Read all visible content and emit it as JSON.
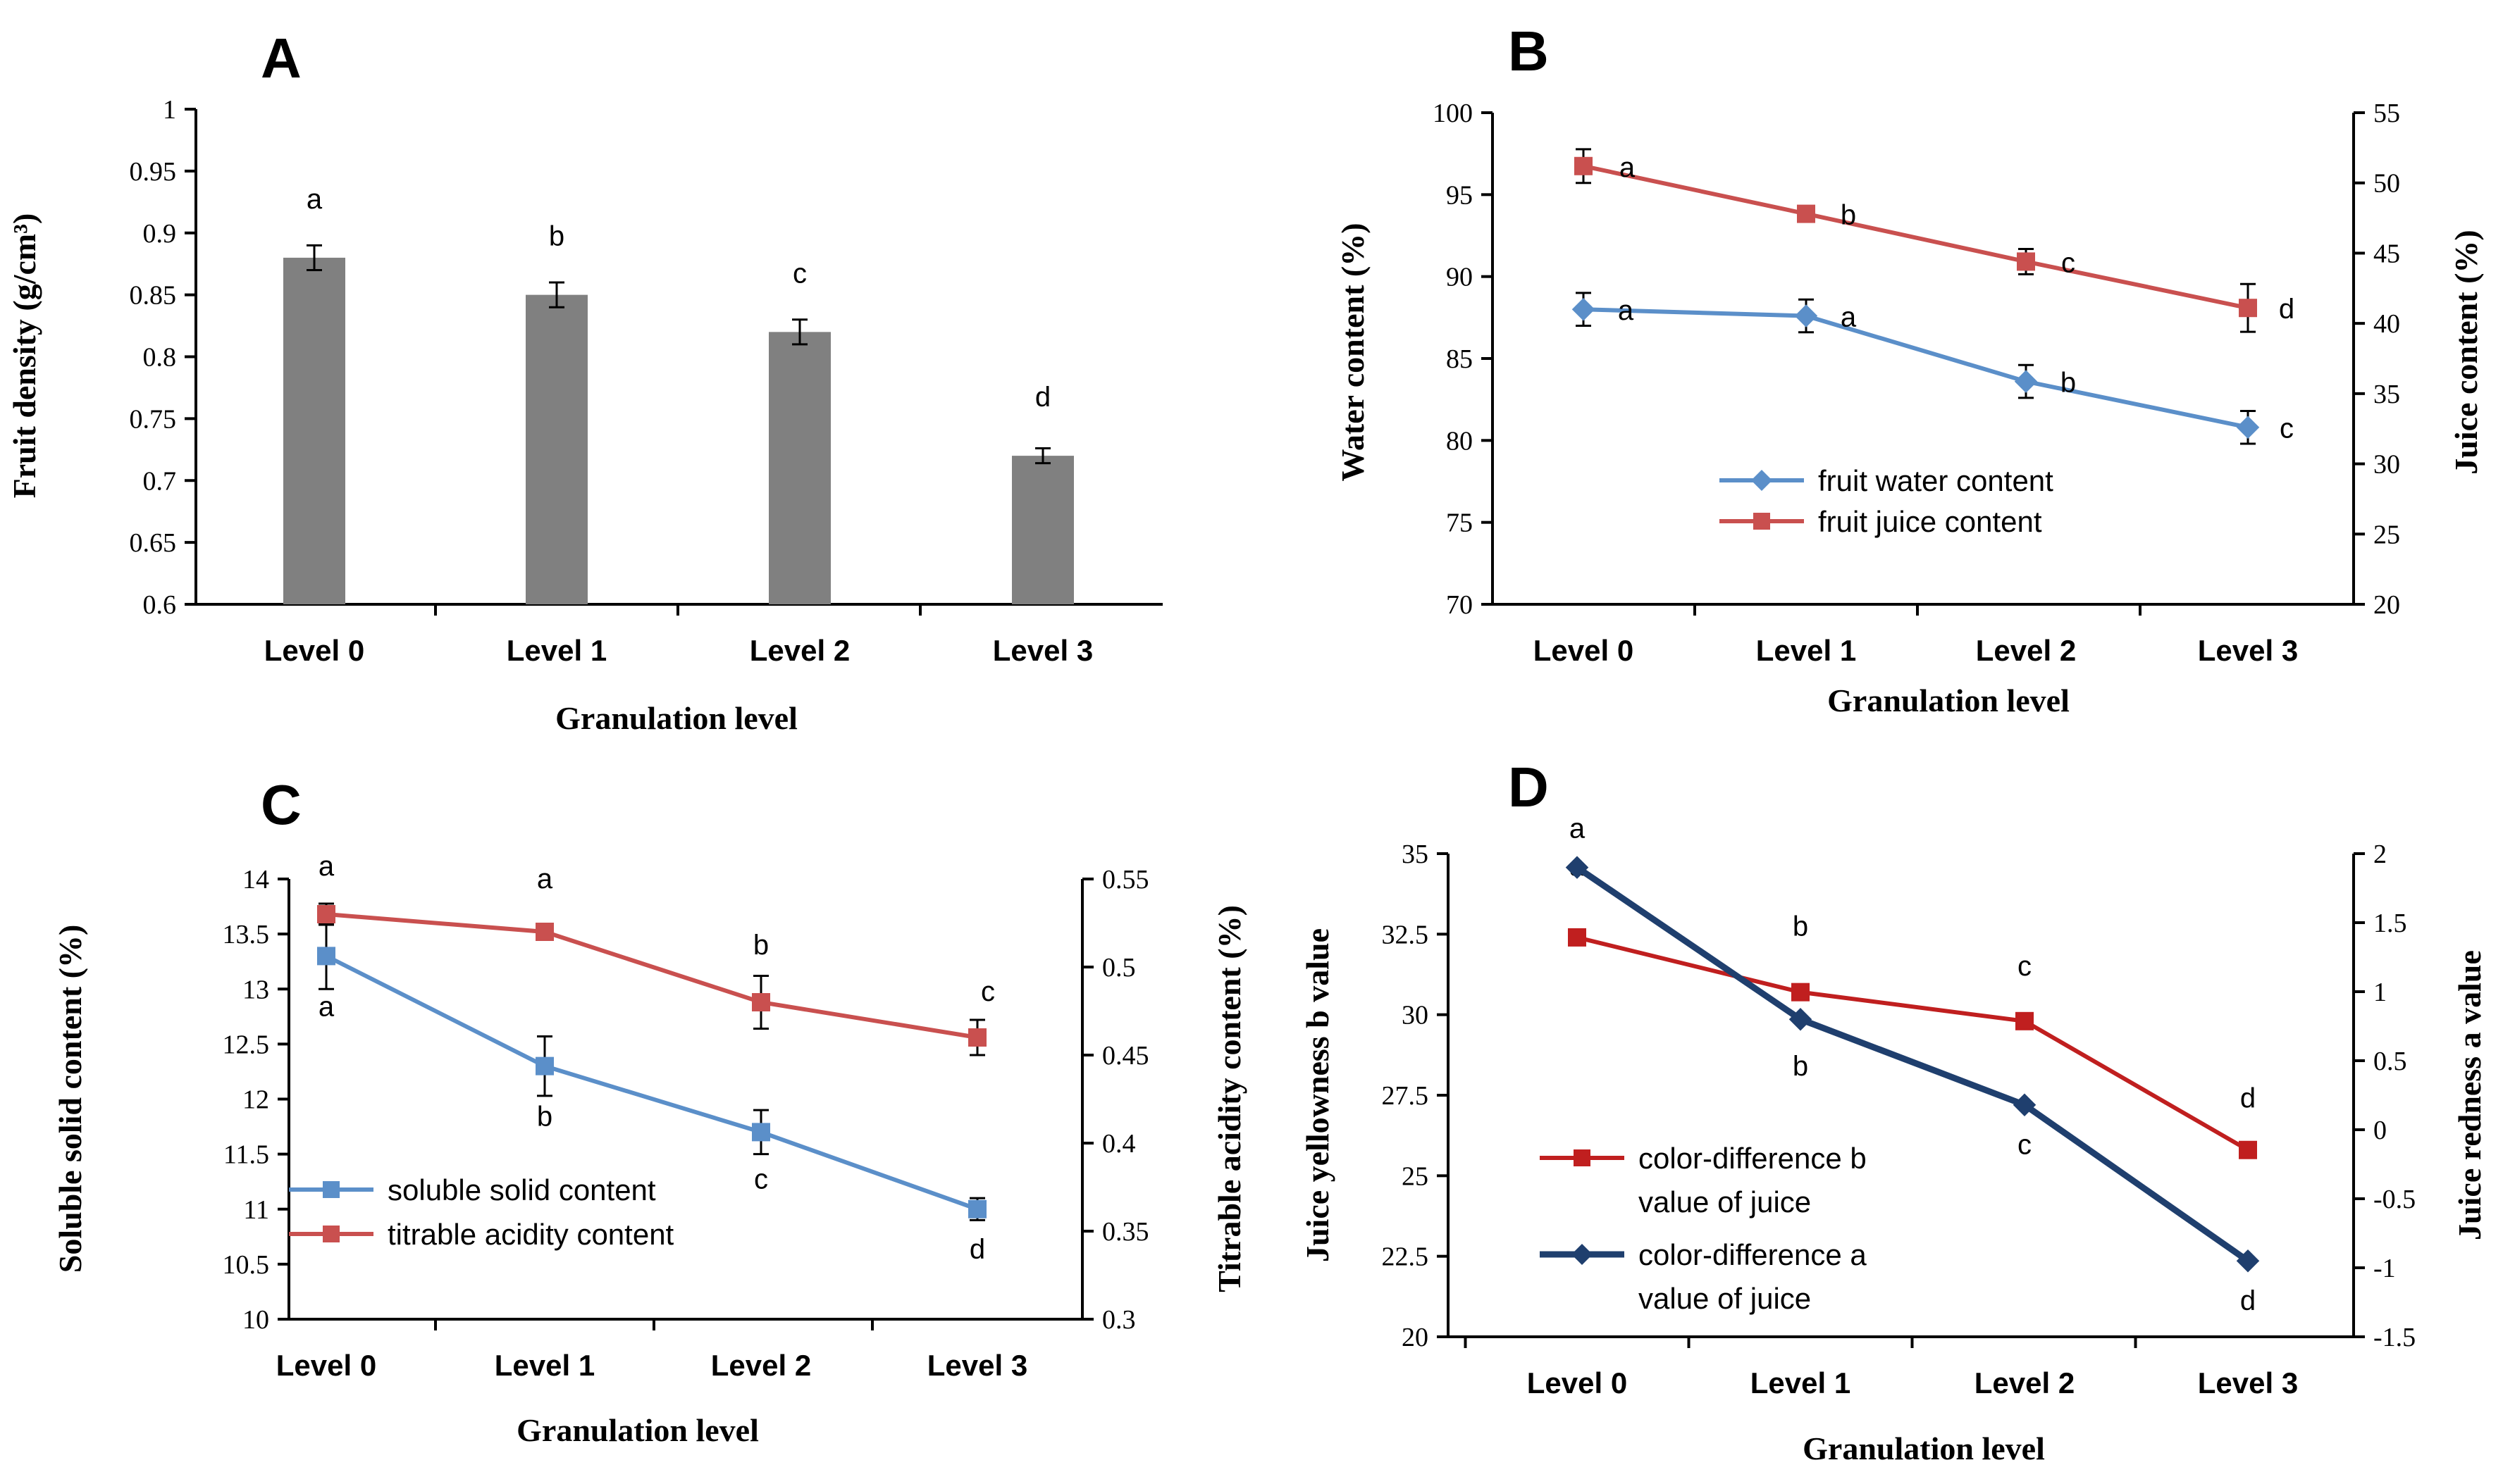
{
  "figure": {
    "background": "#ffffff"
  },
  "chart_data": [
    {
      "panel": "A",
      "type": "bar",
      "categories": [
        "Level 0",
        "Level 1",
        "Level 2",
        "Level 3"
      ],
      "xlabel": "Granulation level",
      "ylabel": "Fruit density (g/cm³)",
      "ylim": [
        0.6,
        1
      ],
      "yticks": [
        "0.6",
        "0.65",
        "0.7",
        "0.75",
        "0.8",
        "0.85",
        "0.9",
        "0.95",
        "1"
      ],
      "series": [
        {
          "name": "Fruit density",
          "color": "#808080",
          "values": [
            0.88,
            0.85,
            0.82,
            0.72
          ],
          "errors": [
            0.01,
            0.01,
            0.01,
            0.006
          ],
          "letters": [
            "a",
            "b",
            "c",
            "d"
          ]
        }
      ]
    },
    {
      "panel": "B",
      "type": "line",
      "categories": [
        "Level 0",
        "Level 1",
        "Level 2",
        "Level 3"
      ],
      "xlabel": "Granulation level",
      "ylabel_left": "Water content (%)",
      "ylabel_right": "Juice content (%)",
      "ylim_left": [
        70,
        100
      ],
      "ylim_right": [
        20,
        55
      ],
      "yticks_left": [
        "70",
        "75",
        "80",
        "85",
        "90",
        "95",
        "100"
      ],
      "yticks_right": [
        "20",
        "25",
        "30",
        "35",
        "40",
        "45",
        "50",
        "55"
      ],
      "series": [
        {
          "name": "fruit water content",
          "axis": "left",
          "color": "#5b8fc9",
          "marker": "diamond",
          "values": [
            88,
            87.6,
            83.6,
            80.8
          ],
          "errors": [
            1.0,
            1.0,
            1.0,
            1.0
          ],
          "letters": [
            "a",
            "a",
            "b",
            "c"
          ]
        },
        {
          "name": "fruit juice content",
          "axis": "right",
          "color": "#c9504f",
          "marker": "square",
          "values": [
            51.2,
            47.8,
            44.4,
            41.1
          ],
          "errors": [
            1.2,
            0.4,
            0.9,
            1.7
          ],
          "letters": [
            "a",
            "b",
            "c",
            "d"
          ]
        }
      ]
    },
    {
      "panel": "C",
      "type": "line",
      "categories": [
        "Level 0",
        "Level 1",
        "Level 2",
        "Level 3"
      ],
      "xlabel": "Granulation level",
      "ylabel_left": "Soluble solid content (%)",
      "ylabel_right": "Titrable acidity content (%)",
      "ylim_left": [
        10,
        14
      ],
      "ylim_right": [
        0.3,
        0.55
      ],
      "yticks_left": [
        "10",
        "10.5",
        "11",
        "11.5",
        "12",
        "12.5",
        "13",
        "13.5",
        "14"
      ],
      "yticks_right": [
        "0.3",
        "0.35",
        "0.4",
        "0.45",
        "0.5",
        "0.55"
      ],
      "series": [
        {
          "name": "soluble solid content",
          "axis": "left",
          "color": "#5b8fc9",
          "marker": "square",
          "values": [
            13.3,
            12.3,
            11.7,
            11.0
          ],
          "errors": [
            0.3,
            0.27,
            0.2,
            0.1
          ],
          "letters": [
            "a",
            "b",
            "c",
            "d"
          ]
        },
        {
          "name": "titrable acidity content",
          "axis": "right",
          "color": "#c9504f",
          "marker": "square",
          "values": [
            0.53,
            0.52,
            0.48,
            0.46
          ],
          "errors": [
            0.006,
            0.004,
            0.015,
            0.01
          ],
          "letters": [
            "a",
            "a",
            "b",
            "c"
          ]
        }
      ]
    },
    {
      "panel": "D",
      "type": "line",
      "categories": [
        "Level 0",
        "Level 1",
        "Level 2",
        "Level 3"
      ],
      "xlabel": "Granulation level",
      "ylabel_left": "Juice yellowness b value",
      "ylabel_right": "Juice redness a value",
      "ylim_left": [
        20,
        35
      ],
      "ylim_right": [
        -1.5,
        2
      ],
      "yticks_left": [
        "20",
        "22.5",
        "25",
        "27.5",
        "30",
        "32.5",
        "35"
      ],
      "yticks_right": [
        "-1.5",
        "-1",
        "-0.5",
        "0",
        "0.5",
        "1",
        "1.5",
        "2"
      ],
      "series": [
        {
          "name": "color-difference b value of juice",
          "legend_lines": [
            "color-difference b",
            "value of juice"
          ],
          "axis": "left",
          "color": "#c01f1f",
          "marker": "square",
          "values": [
            32.4,
            30.7,
            29.8,
            25.8
          ],
          "letters": [
            "a",
            "b",
            "c",
            "d"
          ]
        },
        {
          "name": "color-difference a value of juice",
          "legend_lines": [
            "color-difference a",
            "value of juice"
          ],
          "axis": "right",
          "color": "#1f3f6e",
          "marker": "diamond",
          "values": [
            1.9,
            0.8,
            0.18,
            -0.95
          ],
          "letters": [
            "a",
            "b",
            "c",
            "d"
          ]
        }
      ]
    }
  ]
}
